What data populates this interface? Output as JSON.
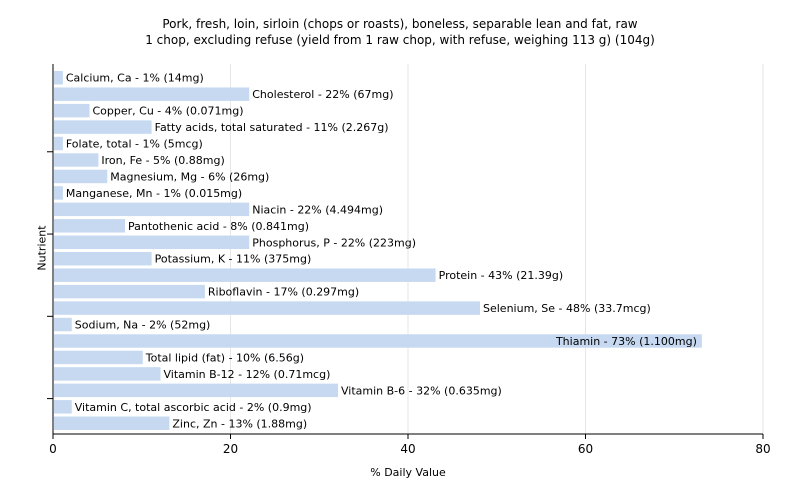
{
  "chart_data": {
    "type": "bar",
    "orientation": "horizontal",
    "title": "Pork, fresh, loin, sirloin (chops or roasts), boneless, separable lean and fat, raw",
    "subtitle": "1 chop, excluding refuse (yield from 1 raw chop, with refuse, weighing 113 g) (104g)",
    "xlabel": "% Daily Value",
    "ylabel": "Nutrient",
    "xlim": [
      0,
      80
    ],
    "xticks": [
      "0",
      "20",
      "40",
      "60",
      "80"
    ],
    "grid": true,
    "bar_color": "#c6d9f1",
    "categories": [
      "Calcium, Ca",
      "Cholesterol",
      "Copper, Cu",
      "Fatty acids, total saturated",
      "Folate, total",
      "Iron, Fe",
      "Magnesium, Mg",
      "Manganese, Mn",
      "Niacin",
      "Pantothenic acid",
      "Phosphorus, P",
      "Potassium, K",
      "Protein",
      "Riboflavin",
      "Selenium, Se",
      "Sodium, Na",
      "Thiamin",
      "Total lipid (fat)",
      "Vitamin B-12",
      "Vitamin B-6",
      "Vitamin C, total ascorbic acid",
      "Zinc, Zn"
    ],
    "values": [
      1,
      22,
      4,
      11,
      1,
      5,
      6,
      1,
      22,
      8,
      22,
      11,
      43,
      17,
      48,
      2,
      73,
      10,
      12,
      32,
      2,
      13
    ],
    "labels": [
      "Calcium, Ca - 1% (14mg)",
      "Cholesterol - 22% (67mg)",
      "Copper, Cu - 4% (0.071mg)",
      "Fatty acids, total saturated - 11% (2.267g)",
      "Folate, total - 1% (5mcg)",
      "Iron, Fe - 5% (0.88mg)",
      "Magnesium, Mg - 6% (26mg)",
      "Manganese, Mn - 1% (0.015mg)",
      "Niacin - 22% (4.494mg)",
      "Pantothenic acid - 8% (0.841mg)",
      "Phosphorus, P - 22% (223mg)",
      "Potassium, K - 11% (375mg)",
      "Protein - 43% (21.39g)",
      "Riboflavin - 17% (0.297mg)",
      "Selenium, Se - 48% (33.7mcg)",
      "Sodium, Na - 2% (52mg)",
      "Thiamin - 73% (1.100mg)",
      "Total lipid (fat) - 10% (6.56g)",
      "Vitamin B-12 - 12% (0.71mcg)",
      "Vitamin B-6 - 32% (0.635mg)",
      "Vitamin C, total ascorbic acid - 2% (0.9mg)",
      "Zinc, Zn - 13% (1.88mg)"
    ]
  }
}
